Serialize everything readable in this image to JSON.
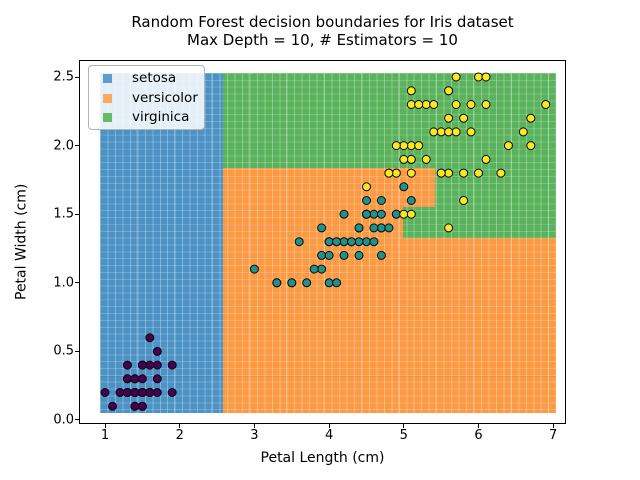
{
  "chart_data": {
    "type": "scatter",
    "title": "Random Forest decision boundaries for Iris dataset",
    "subtitle": "Max Depth = 10, # Estimators = 10",
    "xlabel": "Petal Length (cm)",
    "ylabel": "Petal Width (cm)",
    "xlim": [
      0.665,
      7.158
    ],
    "ylim": [
      -0.022,
      2.617
    ],
    "grid": false,
    "legend_position": "upper left",
    "x_ticks": {
      "values": [
        1,
        2,
        3,
        4,
        5,
        6,
        7
      ],
      "labels": [
        "1",
        "2",
        "3",
        "4",
        "5",
        "6",
        "7"
      ]
    },
    "y_ticks": {
      "values": [
        0.0,
        0.5,
        1.0,
        1.5,
        2.0,
        2.5
      ],
      "labels": [
        "0.0",
        "0.5",
        "1.0",
        "1.5",
        "2.0",
        "2.5"
      ]
    },
    "legend": [
      {
        "label": "setosa"
      },
      {
        "label": "versicolor"
      },
      {
        "label": "virginica"
      }
    ],
    "legend_swatch": {
      "setosa": "#5f9bcd",
      "versicolor": "#fba95e",
      "virginica": "#66bb67"
    },
    "region_fill": {
      "setosa": "#4c92c5",
      "versicolor": "#fb9a43",
      "virginica": "#5ab35c"
    },
    "mesh_extent": {
      "x": [
        0.93,
        7.04
      ],
      "y": [
        0.05,
        2.53
      ]
    },
    "regions": [
      {
        "species": "virginica",
        "x": [
          2.58,
          7.04
        ],
        "y": [
          0.05,
          2.53
        ]
      },
      {
        "species": "versicolor",
        "x": [
          2.58,
          5.42
        ],
        "y": [
          1.55,
          1.84
        ]
      },
      {
        "species": "versicolor",
        "x": [
          2.58,
          4.99
        ],
        "y": [
          1.33,
          1.55
        ]
      },
      {
        "species": "versicolor",
        "x": [
          2.58,
          7.04
        ],
        "y": [
          0.05,
          1.33
        ]
      },
      {
        "species": "setosa",
        "x": [
          0.93,
          2.58
        ],
        "y": [
          0.05,
          2.53
        ]
      }
    ],
    "series": [
      {
        "name": "setosa",
        "marker_color": "#440154",
        "points": [
          [
            1.4,
            0.2
          ],
          [
            1.4,
            0.2
          ],
          [
            1.3,
            0.2
          ],
          [
            1.5,
            0.2
          ],
          [
            1.4,
            0.2
          ],
          [
            1.7,
            0.4
          ],
          [
            1.4,
            0.3
          ],
          [
            1.5,
            0.2
          ],
          [
            1.4,
            0.2
          ],
          [
            1.5,
            0.1
          ],
          [
            1.5,
            0.2
          ],
          [
            1.6,
            0.2
          ],
          [
            1.4,
            0.1
          ],
          [
            1.1,
            0.1
          ],
          [
            1.2,
            0.2
          ],
          [
            1.5,
            0.4
          ],
          [
            1.3,
            0.4
          ],
          [
            1.4,
            0.3
          ],
          [
            1.7,
            0.3
          ],
          [
            1.5,
            0.3
          ],
          [
            1.7,
            0.2
          ],
          [
            1.5,
            0.4
          ],
          [
            1.0,
            0.2
          ],
          [
            1.7,
            0.5
          ],
          [
            1.9,
            0.2
          ],
          [
            1.6,
            0.2
          ],
          [
            1.6,
            0.4
          ],
          [
            1.5,
            0.2
          ],
          [
            1.4,
            0.2
          ],
          [
            1.6,
            0.2
          ],
          [
            1.6,
            0.2
          ],
          [
            1.5,
            0.4
          ],
          [
            1.5,
            0.1
          ],
          [
            1.4,
            0.2
          ],
          [
            1.5,
            0.2
          ],
          [
            1.2,
            0.2
          ],
          [
            1.3,
            0.2
          ],
          [
            1.4,
            0.1
          ],
          [
            1.3,
            0.2
          ],
          [
            1.5,
            0.2
          ],
          [
            1.3,
            0.3
          ],
          [
            1.3,
            0.3
          ],
          [
            1.3,
            0.2
          ],
          [
            1.6,
            0.6
          ],
          [
            1.9,
            0.4
          ],
          [
            1.4,
            0.3
          ],
          [
            1.6,
            0.2
          ],
          [
            1.4,
            0.2
          ],
          [
            1.5,
            0.2
          ],
          [
            1.4,
            0.2
          ]
        ]
      },
      {
        "name": "versicolor",
        "marker_color": "#21918c",
        "points": [
          [
            4.7,
            1.4
          ],
          [
            4.5,
            1.5
          ],
          [
            4.9,
            1.5
          ],
          [
            4.0,
            1.3
          ],
          [
            4.6,
            1.5
          ],
          [
            4.5,
            1.3
          ],
          [
            4.7,
            1.6
          ],
          [
            3.3,
            1.0
          ],
          [
            4.6,
            1.3
          ],
          [
            3.9,
            1.4
          ],
          [
            3.5,
            1.0
          ],
          [
            4.2,
            1.5
          ],
          [
            4.0,
            1.0
          ],
          [
            4.7,
            1.4
          ],
          [
            3.6,
            1.3
          ],
          [
            4.4,
            1.4
          ],
          [
            4.5,
            1.5
          ],
          [
            4.1,
            1.0
          ],
          [
            4.5,
            1.5
          ],
          [
            3.9,
            1.1
          ],
          [
            4.8,
            1.8
          ],
          [
            4.0,
            1.3
          ],
          [
            4.9,
            1.5
          ],
          [
            4.7,
            1.2
          ],
          [
            4.3,
            1.3
          ],
          [
            4.4,
            1.4
          ],
          [
            4.8,
            1.4
          ],
          [
            5.0,
            1.7
          ],
          [
            4.5,
            1.5
          ],
          [
            3.5,
            1.0
          ],
          [
            3.8,
            1.1
          ],
          [
            3.7,
            1.0
          ],
          [
            3.9,
            1.2
          ],
          [
            5.1,
            1.6
          ],
          [
            4.5,
            1.5
          ],
          [
            4.5,
            1.6
          ],
          [
            4.7,
            1.5
          ],
          [
            4.4,
            1.3
          ],
          [
            4.1,
            1.3
          ],
          [
            4.0,
            1.3
          ],
          [
            4.4,
            1.2
          ],
          [
            4.6,
            1.4
          ],
          [
            4.0,
            1.2
          ],
          [
            3.3,
            1.0
          ],
          [
            4.2,
            1.3
          ],
          [
            4.2,
            1.2
          ],
          [
            4.2,
            1.3
          ],
          [
            4.3,
            1.3
          ],
          [
            3.0,
            1.1
          ],
          [
            4.1,
            1.3
          ]
        ]
      },
      {
        "name": "virginica",
        "marker_color": "#fde725",
        "points": [
          [
            6.0,
            2.5
          ],
          [
            5.1,
            1.9
          ],
          [
            5.9,
            2.1
          ],
          [
            5.6,
            1.8
          ],
          [
            5.8,
            2.2
          ],
          [
            6.6,
            2.1
          ],
          [
            4.5,
            1.7
          ],
          [
            6.3,
            1.8
          ],
          [
            5.8,
            1.8
          ],
          [
            6.1,
            2.5
          ],
          [
            5.1,
            2.0
          ],
          [
            5.3,
            1.9
          ],
          [
            5.5,
            2.1
          ],
          [
            5.0,
            2.0
          ],
          [
            5.1,
            2.4
          ],
          [
            5.3,
            2.3
          ],
          [
            5.5,
            1.8
          ],
          [
            6.7,
            2.2
          ],
          [
            6.9,
            2.3
          ],
          [
            5.0,
            1.5
          ],
          [
            5.7,
            2.3
          ],
          [
            4.9,
            2.0
          ],
          [
            6.7,
            2.0
          ],
          [
            4.9,
            1.8
          ],
          [
            5.7,
            2.1
          ],
          [
            6.0,
            1.8
          ],
          [
            4.8,
            1.8
          ],
          [
            4.9,
            1.8
          ],
          [
            5.6,
            2.1
          ],
          [
            5.8,
            1.6
          ],
          [
            6.1,
            1.9
          ],
          [
            6.4,
            2.0
          ],
          [
            5.6,
            2.2
          ],
          [
            5.1,
            1.5
          ],
          [
            5.6,
            1.4
          ],
          [
            6.1,
            2.3
          ],
          [
            5.6,
            2.4
          ],
          [
            5.5,
            1.8
          ],
          [
            4.8,
            1.8
          ],
          [
            5.4,
            2.1
          ],
          [
            5.6,
            2.4
          ],
          [
            5.1,
            2.3
          ],
          [
            5.1,
            1.9
          ],
          [
            5.9,
            2.3
          ],
          [
            5.7,
            2.5
          ],
          [
            5.2,
            2.3
          ],
          [
            5.0,
            1.9
          ],
          [
            5.2,
            2.0
          ],
          [
            5.4,
            2.3
          ],
          [
            5.1,
            1.8
          ]
        ]
      }
    ]
  }
}
